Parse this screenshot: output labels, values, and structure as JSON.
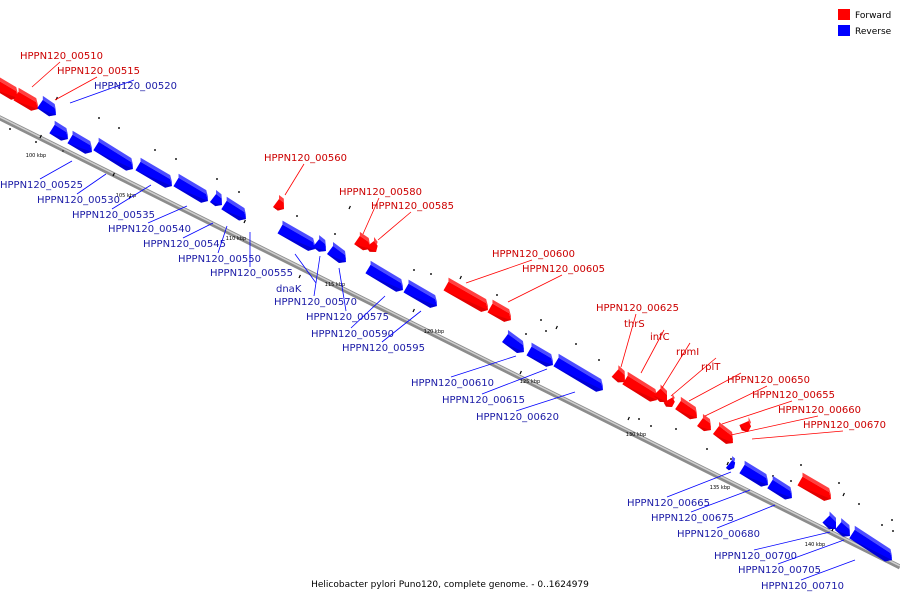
{
  "legend": [
    {
      "label": "Forward",
      "color": "#ff0000"
    },
    {
      "label": "Reverse",
      "color": "#0000ff"
    }
  ],
  "caption": "Helicobacter pylori Puno120, complete genome. - 0..1624979",
  "axis": {
    "tick_labels": [
      "100 kbp",
      "105 kbp",
      "110 kbp",
      "115 kbp",
      "120 kbp",
      "125 kbp",
      "130 kbp",
      "135 kbp",
      "140 kbp"
    ]
  },
  "genes": [
    {
      "label": "HPPN120_00510",
      "strand": "forward"
    },
    {
      "label": "HPPN120_00515",
      "strand": "forward"
    },
    {
      "label": "HPPN120_00520",
      "strand": "reverse"
    },
    {
      "label": "HPPN120_00525",
      "strand": "reverse"
    },
    {
      "label": "HPPN120_00530",
      "strand": "reverse"
    },
    {
      "label": "HPPN120_00535",
      "strand": "reverse"
    },
    {
      "label": "HPPN120_00540",
      "strand": "reverse"
    },
    {
      "label": "HPPN120_00545",
      "strand": "reverse"
    },
    {
      "label": "HPPN120_00550",
      "strand": "reverse"
    },
    {
      "label": "HPPN120_00555",
      "strand": "reverse"
    },
    {
      "label": "HPPN120_00560",
      "strand": "forward"
    },
    {
      "label": "dnaK",
      "strand": "reverse"
    },
    {
      "label": "HPPN120_00570",
      "strand": "reverse"
    },
    {
      "label": "HPPN120_00575",
      "strand": "reverse"
    },
    {
      "label": "HPPN120_00580",
      "strand": "forward"
    },
    {
      "label": "HPPN120_00585",
      "strand": "forward"
    },
    {
      "label": "HPPN120_00590",
      "strand": "reverse"
    },
    {
      "label": "HPPN120_00595",
      "strand": "reverse"
    },
    {
      "label": "HPPN120_00600",
      "strand": "forward"
    },
    {
      "label": "HPPN120_00605",
      "strand": "forward"
    },
    {
      "label": "HPPN120_00610",
      "strand": "reverse"
    },
    {
      "label": "HPPN120_00615",
      "strand": "reverse"
    },
    {
      "label": "HPPN120_00620",
      "strand": "reverse"
    },
    {
      "label": "HPPN120_00625",
      "strand": "forward"
    },
    {
      "label": "thrS",
      "strand": "forward"
    },
    {
      "label": "infC",
      "strand": "forward"
    },
    {
      "label": "rpmI",
      "strand": "forward"
    },
    {
      "label": "rplT",
      "strand": "forward"
    },
    {
      "label": "HPPN120_00650",
      "strand": "forward"
    },
    {
      "label": "HPPN120_00655",
      "strand": "forward"
    },
    {
      "label": "HPPN120_00660",
      "strand": "forward"
    },
    {
      "label": "HPPN120_00665",
      "strand": "reverse"
    },
    {
      "label": "HPPN120_00670",
      "strand": "forward"
    },
    {
      "label": "HPPN120_00675",
      "strand": "reverse"
    },
    {
      "label": "HPPN120_00680",
      "strand": "reverse"
    },
    {
      "label": "HPPN120_00700",
      "strand": "reverse"
    },
    {
      "label": "HPPN120_00705",
      "strand": "reverse"
    },
    {
      "label": "HPPN120_00710",
      "strand": "reverse"
    }
  ]
}
